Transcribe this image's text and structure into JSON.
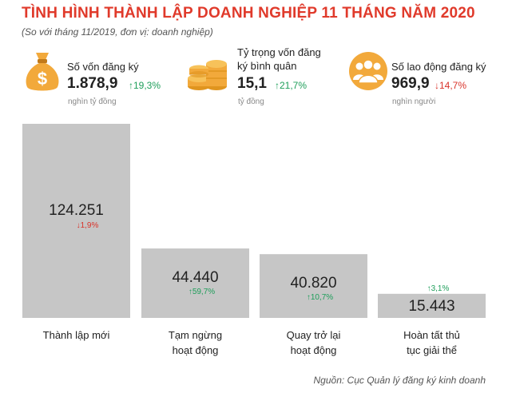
{
  "header": {
    "title": "TÌNH HÌNH THÀNH LẬP DOANH NGHIỆP 11 THÁNG  NĂM 2020",
    "subtitle": "(So với tháng 11/2019, đơn vị: doanh nghiệp)"
  },
  "kpis": [
    {
      "label_lines": [
        "Số vốn đăng ký"
      ],
      "value": "1.878,9",
      "change": "↑19,3%",
      "direction": "up",
      "unit": "nghìn tỷ đồng",
      "icon": "money-bag-icon"
    },
    {
      "label_lines": [
        "Tỷ trọng vốn đăng",
        "ký bình quân"
      ],
      "value": "15,1",
      "change": "↑21,7%",
      "direction": "up",
      "unit": "tỷ đồng",
      "icon": "coin-stack-icon"
    },
    {
      "label_lines": [
        "Số lao động đăng ký"
      ],
      "value": "969,9",
      "change": "↓14,7%",
      "direction": "down",
      "unit": "nghìn người",
      "icon": "people-group-icon"
    }
  ],
  "chart_data": {
    "type": "bar",
    "categories": [
      [
        "Thành lập mới"
      ],
      [
        "Tạm ngừng",
        "hoạt động"
      ],
      [
        "Quay trở lại",
        "hoạt động"
      ],
      [
        "Hoàn tất thủ",
        "tục giải thể"
      ]
    ],
    "values": [
      124251,
      44440,
      40820,
      15443
    ],
    "value_labels": [
      "124.251",
      "44.440",
      "40.820",
      "15.443"
    ],
    "changes": [
      {
        "text": "↓1,9%",
        "direction": "down"
      },
      {
        "text": "↑59,7%",
        "direction": "up"
      },
      {
        "text": "↑10,7%",
        "direction": "up"
      },
      {
        "text": "↑3,1%",
        "direction": "up"
      }
    ],
    "ylim": [
      0,
      124251
    ],
    "grid": false,
    "legend": "none",
    "colors": {
      "bar": "#c6c6c6",
      "up": "#1e9e5a",
      "down": "#d9332a"
    }
  },
  "footer": {
    "source": "Nguồn: Cục Quản lý đăng ký kinh doanh"
  }
}
